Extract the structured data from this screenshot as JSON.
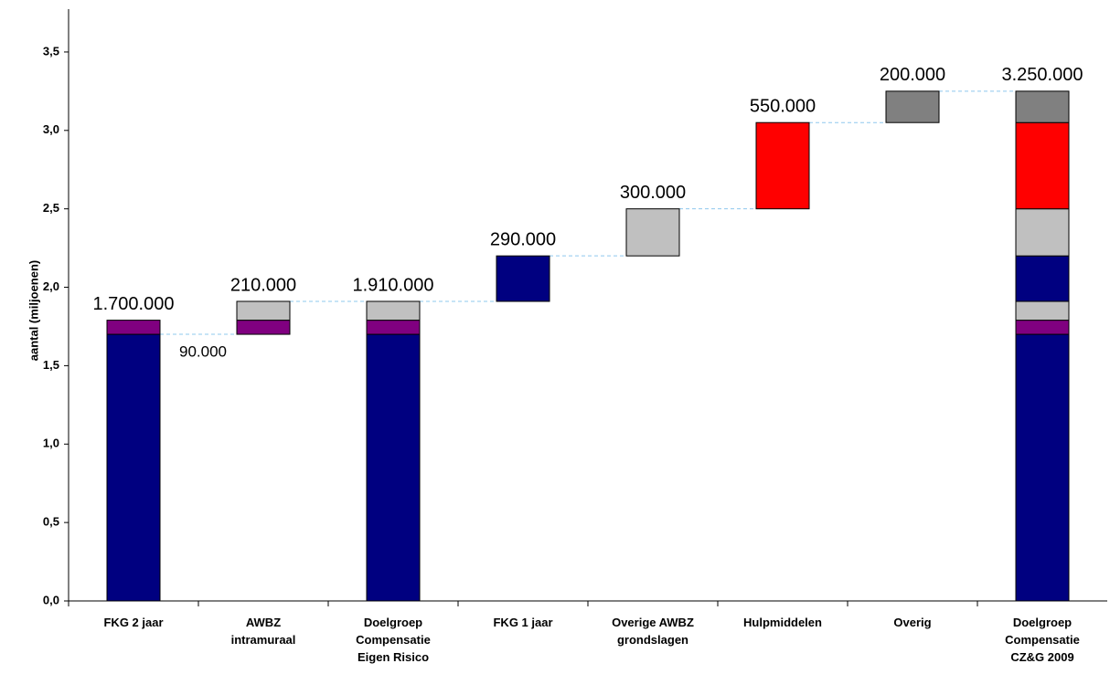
{
  "chart_data": {
    "type": "waterfall",
    "y_label": "aantal (miljoenen)",
    "categories": [
      [
        "FKG 2 jaar"
      ],
      [
        "AWBZ",
        "intramuraal"
      ],
      [
        "Doelgroep",
        "Compensatie",
        "Eigen Risico"
      ],
      [
        "FKG 1 jaar"
      ],
      [
        "Overige AWBZ",
        "grondslagen"
      ],
      [
        "Hulpmiddelen"
      ],
      [
        "Overig"
      ],
      [
        "Doelgroep",
        "Compensatie",
        "CZ&G 2009"
      ]
    ],
    "series": [
      {
        "color": "#000080",
        "values": [
          1.7,
          null,
          1.7,
          null,
          null,
          null,
          null,
          1.7
        ]
      },
      {
        "color": "#800080",
        "values": [
          0.09,
          0.09,
          0.09,
          null,
          null,
          null,
          null,
          0.09
        ],
        "value_labels": [
          "90.000",
          null,
          null,
          null,
          null,
          null,
          null,
          null
        ]
      },
      {
        "color": "#c0c0c0",
        "values": [
          null,
          0.12,
          0.12,
          null,
          null,
          null,
          null,
          0.12
        ]
      },
      {
        "color": "#000080",
        "values": [
          null,
          null,
          null,
          0.29,
          null,
          null,
          null,
          0.29
        ]
      },
      {
        "color": "#c0c0c0",
        "values": [
          null,
          null,
          null,
          null,
          0.3,
          null,
          null,
          0.3
        ]
      },
      {
        "color": "#ff0000",
        "values": [
          null,
          null,
          null,
          null,
          null,
          0.55,
          null,
          0.55
        ]
      },
      {
        "color": "#808080",
        "values": [
          null,
          null,
          null,
          null,
          null,
          null,
          0.2,
          0.2
        ]
      }
    ],
    "bar_labels": {
      "values": [
        1.7,
        0.21,
        1.91,
        0.29,
        0.3,
        0.55,
        0.2,
        3.25
      ],
      "value_labels": [
        "1.700.000",
        "210.000",
        "1.910.000",
        "290.000",
        "300.000",
        "550.000",
        "200.000",
        "3.250.000"
      ]
    },
    "ylim": [
      0,
      3.75
    ],
    "yticks": [
      {
        "value": 0,
        "label": "0,0"
      },
      {
        "value": 0.5,
        "label": "0,5"
      },
      {
        "value": 1,
        "label": "1,0"
      },
      {
        "value": 1.5,
        "label": "1,5"
      },
      {
        "value": 2,
        "label": "2,0"
      },
      {
        "value": 2.5,
        "label": "2,5"
      },
      {
        "value": 3,
        "label": "3,0"
      },
      {
        "value": 3.5,
        "label": "3,5"
      }
    ]
  }
}
